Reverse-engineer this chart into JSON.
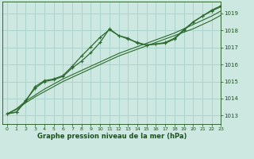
{
  "background_color": "#cce8e0",
  "grid_color": "#aad4cc",
  "line_color": "#2d6a2d",
  "text_color": "#1a5218",
  "xlabel": "Graphe pression niveau de la mer (hPa)",
  "xlim": [
    -0.5,
    23
  ],
  "ylim": [
    1012.5,
    1019.7
  ],
  "yticks": [
    1013,
    1014,
    1015,
    1016,
    1017,
    1018,
    1019
  ],
  "xticks": [
    0,
    1,
    2,
    3,
    4,
    5,
    6,
    7,
    8,
    9,
    10,
    11,
    12,
    13,
    14,
    15,
    16,
    17,
    18,
    19,
    20,
    21,
    22,
    23
  ],
  "series_wavy": [
    [
      1013.1,
      1013.2,
      1013.9,
      1014.6,
      1015.0,
      1015.1,
      1015.3,
      1015.8,
      1016.2,
      1016.7,
      1017.3,
      1018.1,
      1017.7,
      1017.55,
      1017.25,
      1017.15,
      1017.2,
      1017.25,
      1017.5,
      1018.0,
      1018.5,
      1018.85,
      1019.15,
      1019.4
    ],
    [
      1013.1,
      1013.2,
      1013.85,
      1014.7,
      1015.05,
      1015.15,
      1015.35,
      1015.9,
      1016.5,
      1017.05,
      1017.6,
      1018.05,
      1017.7,
      1017.5,
      1017.3,
      1017.15,
      1017.2,
      1017.3,
      1017.55,
      1018.05,
      1018.5,
      1018.85,
      1019.2,
      1019.45
    ]
  ],
  "series_straight": [
    [
      1013.1,
      1013.35,
      1013.75,
      1014.1,
      1014.4,
      1014.7,
      1015.0,
      1015.25,
      1015.5,
      1015.75,
      1016.0,
      1016.25,
      1016.5,
      1016.7,
      1016.9,
      1017.1,
      1017.3,
      1017.5,
      1017.7,
      1017.9,
      1018.1,
      1018.35,
      1018.6,
      1018.9
    ],
    [
      1013.1,
      1013.4,
      1013.85,
      1014.2,
      1014.55,
      1014.85,
      1015.15,
      1015.4,
      1015.65,
      1015.9,
      1016.15,
      1016.4,
      1016.65,
      1016.85,
      1017.05,
      1017.25,
      1017.45,
      1017.65,
      1017.85,
      1018.1,
      1018.35,
      1018.6,
      1018.85,
      1019.15
    ]
  ]
}
